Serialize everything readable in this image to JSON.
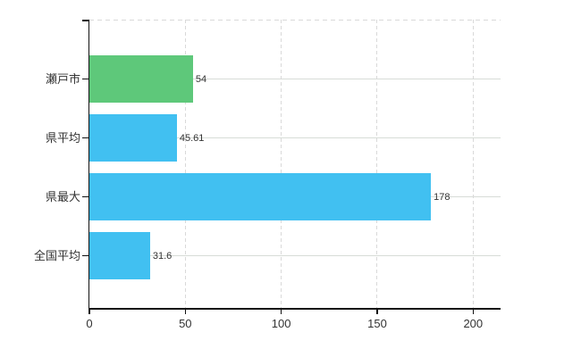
{
  "chart_data": {
    "type": "bar",
    "orientation": "horizontal",
    "title": "",
    "xlabel": "",
    "ylabel": "",
    "categories": [
      "瀬戸市",
      "県平均",
      "県最大",
      "全国平均"
    ],
    "values": [
      54,
      45.61,
      178,
      31.6
    ],
    "value_labels": [
      "54",
      "45.61",
      "178",
      "31.6"
    ],
    "bar_colors": [
      "#5ec87a",
      "#41c0f1",
      "#41c0f1",
      "#41c0f1"
    ],
    "highlight_color": "#5ec87a",
    "series_color": "#41c0f1",
    "x_ticks": [
      0,
      50,
      100,
      150,
      200
    ],
    "x_tick_labels": [
      "0",
      "50",
      "100",
      "150",
      "200"
    ],
    "xlim": [
      0,
      214.3
    ],
    "grid": true,
    "legend": false,
    "background_color": "#ffffff",
    "axis_color": "#111111",
    "grid_color": "#d9d9d9",
    "text_color": "#333333"
  }
}
